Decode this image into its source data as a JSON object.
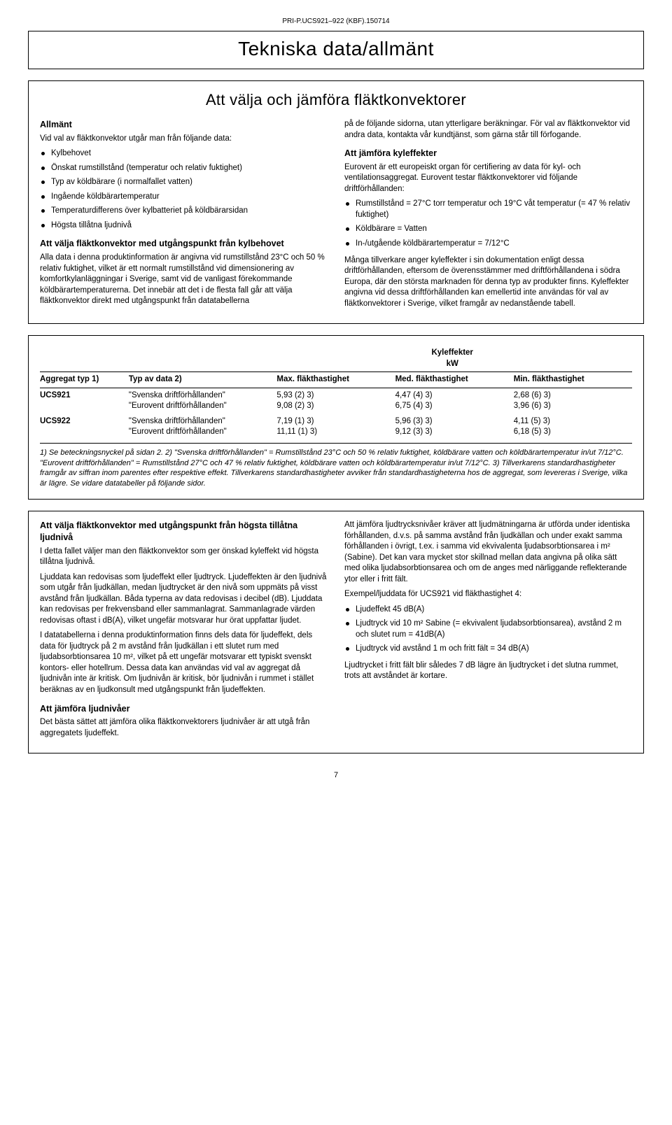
{
  "doc_id": "PRI-P.UCS921–922 (KBF).150714",
  "main_title": "Tekniska data/allmänt",
  "section1": {
    "subtitle": "Att välja och jämföra fläktkonvektorer",
    "left": {
      "h_allmant": "Allmänt",
      "p_allmant_intro": "Vid val av fläktkonvektor utgår man från följande data:",
      "bullets_allmant": [
        "Kylbehovet",
        "Önskat rumstillstånd (temperatur och relativ fuktighet)",
        "Typ av köldbärare (i normalfallet vatten)",
        "Ingående köldbärartemperatur",
        "Temperaturdifferens över kylbatteriet på köldbärarsidan",
        "Högsta tillåtna ljudnivå"
      ],
      "h_valja_kyl": "Att välja fläktkonvektor med utgångspunkt från kylbehovet",
      "p_valja_kyl": "Alla data i denna produktinformation är angivna vid rumstillstånd 23°C och 50 % relativ fuktighet, vilket är ett normalt rumstillstånd vid dimensionering av komfortkylanläggningar i Sverige, samt vid de vanligast förekommande köldbärartemperaturerna. Det innebär att det i de flesta fall går att välja fläktkonvektor direkt med utgångspunkt från datatabellerna"
    },
    "right": {
      "p_pa_foljande": "på de följande sidorna, utan ytterligare beräkningar. För val av fläktkonvektor vid andra data, kontakta vår kundtjänst, som gärna står till förfogande.",
      "h_jamfora_kyle": "Att jämföra kyleffekter",
      "p_eurovent_cert": "Eurovent är ett europeiskt organ för certifiering av data för kyl- och ventilationsaggregat. Eurovent testar fläktkonvektorer vid följande driftförhållanden:",
      "bullets_drift": [
        "Rumstillstånd = 27°C torr temperatur och 19°C våt temperatur (= 47 % relativ fuktighet)",
        "Köldbärare = Vatten",
        "In-/utgående köldbärartemperatur = 7/12°C"
      ],
      "p_manga_tillverkare": "Många tillverkare anger kyleffekter i sin dokumentation enligt dessa driftförhållanden, eftersom de överensstämmer med driftförhållandena i södra Europa, där den största marknaden för denna typ av produkter finns. Kyleffekter angivna vid dessa driftförhållanden kan emellertid inte användas för val av fläktkonvektorer i Sverige, vilket framgår av nedanstående tabell."
    }
  },
  "table": {
    "kw_title": "Kyleffekter\nkW",
    "col_agg": "Aggregat typ 1)",
    "col_type": "Typ av data 2)",
    "col_max": "Max. fläkthastighet",
    "col_med": "Med. fläkthastighet",
    "col_min": "Min. fläkthastighet",
    "rows": [
      {
        "agg": "UCS921",
        "type": "\"Svenska driftförhållanden\"\n\"Eurovent driftförhållanden\"",
        "max": "5,93 (2) 3)\n9,08 (2) 3)",
        "med": "4,47 (4) 3)\n6,75 (4) 3)",
        "min": "2,68 (6) 3)\n3,96 (6) 3)"
      },
      {
        "agg": "UCS922",
        "type": "\"Svenska driftförhållanden\"\n\"Eurovent driftförhållanden\"",
        "max": "7,19 (1) 3)\n11,11 (1) 3)",
        "med": "5,96 (3) 3)\n9,12 (3) 3)",
        "min": "4,11 (5) 3)\n6,18 (5) 3)"
      }
    ],
    "note": "1) Se beteckningsnyckel på sidan 2. 2) \"Svenska driftförhållanden\" = Rumstillstånd 23°C och 50 % relativ fuktighet, köldbärare vatten och köldbärartemperatur in/ut 7/12°C. \"Eurovent driftförhållanden\" = Rumstillstånd 27°C och 47 % relativ fuktighet, köldbärare vatten och köldbärartemperatur in/ut 7/12°C. 3) Tillverkarens standardhastigheter framgår av siffran inom parentes efter respektive effekt. Tillverkarens standardhastigheter avviker från standardhastigheterna hos de aggregat, som levereras i Sverige, vilka är lägre. Se vidare datatabeller på följande sidor."
  },
  "section3": {
    "left": {
      "h_hogsta_ljud": "Att välja fläktkonvektor med utgångspunkt från högsta tillåtna ljudnivå",
      "p_i_detta": "I detta fallet väljer man den fläktkonvektor som ger önskad kyleffekt vid högsta tillåtna ljudnivå.",
      "p_ljuddata_kan": "Ljuddata kan redovisas som ljudeffekt eller ljudtryck. Ljudeffekten är den ljudnivå som utgår från ljudkällan, medan ljudtrycket är den nivå som uppmäts på visst avstånd från ljudkällan. Båda typerna av data redovisas i decibel (dB). Ljuddata kan redovisas per frekvensband eller sammanlagrat. Sammanlagrade värden redovisas oftast i dB(A), vilket ungefär motsvarar hur örat uppfattar ljudet.",
      "p_i_datatabellerna": "I datatabellerna i denna produktinformation finns dels data för ljudeffekt, dels data för ljudtryck på 2 m avstånd från ljudkällan i ett slutet rum med ljudabsorbtionsarea 10 m², vilket på ett ungefär motsvarar ett typiskt svenskt kontors- eller hotellrum. Dessa data kan användas vid val av aggregat då ljudnivån inte är kritisk. Om ljudnivån är kritisk, bör ljudnivån i rummet i stället beräknas av en ljudkonsult med utgångspunkt från ljudeffekten.",
      "h_jamfora_ljud": "Att jämföra ljudnivåer",
      "p_basta_sattet": "Det bästa sättet att jämföra olika fläktkonvektorers ljudnivåer är att utgå från aggregatets ljudeffekt."
    },
    "right": {
      "p_att_jamfora_ljudtryck": "Att jämföra ljudtrycksnivåer kräver att ljudmätningarna är utförda under identiska förhållanden, d.v.s. på samma avstånd från ljudkällan och under exakt samma förhållanden i övrigt, t.ex. i samma vid ekvivalenta ljudabsorbtionsarea i m² (Sabine). Det kan vara mycket stor skillnad mellan data angivna på olika sätt med olika ljudabsorbtionsarea och om de anges med närliggande reflekterande ytor eller i fritt fält.",
      "p_exempel": "Exempel/ljuddata för UCS921 vid fläkthastighet 4:",
      "bullets_exempel": [
        "Ljudeffekt 45 dB(A)",
        "Ljudtryck vid 10 m² Sabine (= ekvivalent ljudabsorbtionsarea), avstånd 2 m och slutet rum = 41dB(A)",
        "Ljudtryck vid avstånd 1 m och fritt fält = 34 dB(A)"
      ],
      "p_ljudtrycket_fritt": "Ljudtrycket i fritt fält blir således 7 dB lägre än ljudtrycket i det slutna rummet, trots att avståndet är kortare."
    }
  },
  "page_num": "7"
}
